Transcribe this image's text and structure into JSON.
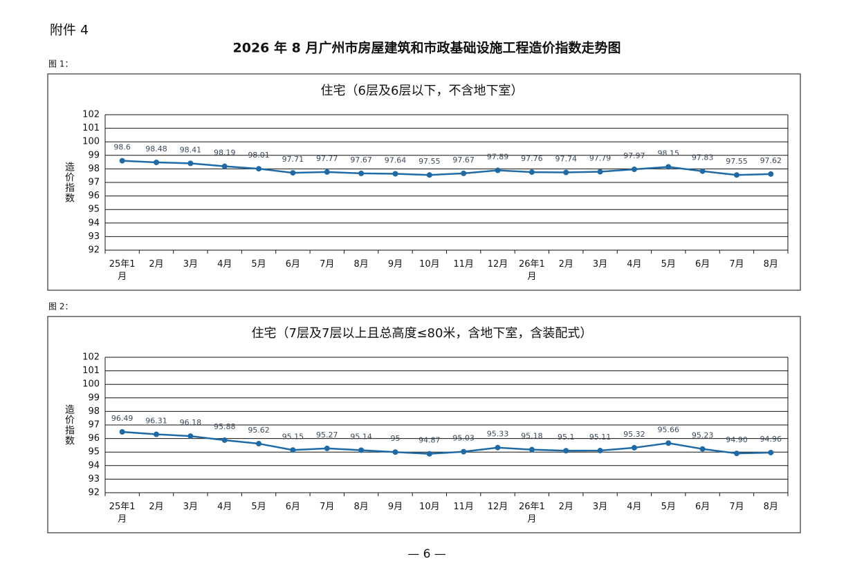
{
  "header": {
    "attachment": "附件 4",
    "title": "2026 年 8 月广州市房屋建筑和市政基础设施工程造价指数走势图"
  },
  "chart_data": [
    {
      "type": "line",
      "figure_label": "图 1：",
      "title": "住宅（6层及6层以下，不含地下室）",
      "y_label": "造价指数",
      "categories": [
        "25年1月",
        "2月",
        "3月",
        "4月",
        "5月",
        "6月",
        "7月",
        "8月",
        "9月",
        "10月",
        "11月",
        "12月",
        "26年1月",
        "2月",
        "3月",
        "4月",
        "5月",
        "6月",
        "7月",
        "8月"
      ],
      "values": [
        98.6,
        98.48,
        98.41,
        98.19,
        98.01,
        97.71,
        97.77,
        97.67,
        97.64,
        97.55,
        97.67,
        97.89,
        97.76,
        97.74,
        97.79,
        97.97,
        98.15,
        97.83,
        97.55,
        97.62
      ],
      "color": "#1f6aa5",
      "ylim": [
        92,
        102
      ],
      "yticks": [
        92,
        93,
        94,
        95,
        96,
        97,
        98,
        99,
        100,
        101,
        102
      ],
      "grid": true
    },
    {
      "type": "line",
      "figure_label": "图 2：",
      "title": "住宅（7层及7层以上且总高度≤80米，含地下室，含装配式）",
      "y_label": "造价指数",
      "categories": [
        "25年1月",
        "2月",
        "3月",
        "4月",
        "5月",
        "6月",
        "7月",
        "8月",
        "9月",
        "10月",
        "11月",
        "12月",
        "26年1月",
        "2月",
        "3月",
        "4月",
        "5月",
        "6月",
        "7月",
        "8月"
      ],
      "values": [
        96.49,
        96.31,
        96.18,
        95.88,
        95.62,
        95.15,
        95.27,
        95.14,
        95,
        94.87,
        95.03,
        95.33,
        95.18,
        95.1,
        95.11,
        95.32,
        95.66,
        95.23,
        94.9,
        94.96
      ],
      "value_labels": [
        "96.49",
        "96.31",
        "96.18",
        "95.88",
        "95.62",
        "95.15",
        "95.27",
        "95.14",
        "95",
        "94.87",
        "95.03",
        "95.33",
        "95.18",
        "95.1",
        "95.11",
        "95.32",
        "95.66",
        "95.23",
        "94.90",
        "94.96"
      ],
      "color": "#1f6aa5",
      "ylim": [
        92,
        102
      ],
      "yticks": [
        92,
        93,
        94,
        95,
        96,
        97,
        98,
        99,
        100,
        101,
        102
      ],
      "grid": true
    }
  ],
  "footer": "— 6 —"
}
